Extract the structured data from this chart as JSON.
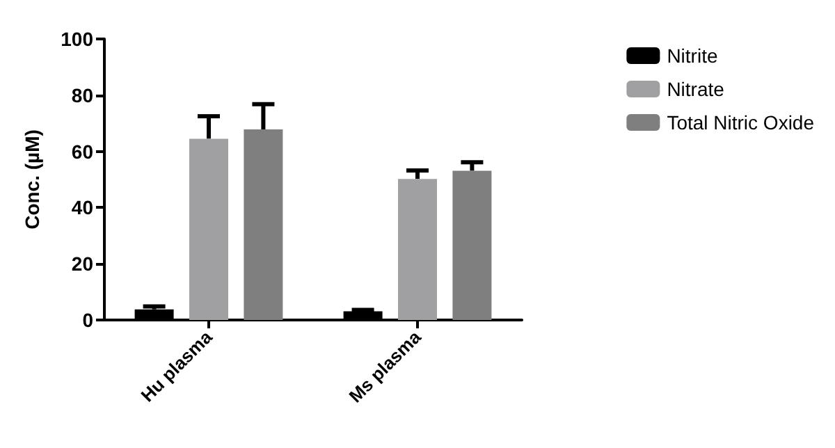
{
  "chart_data": {
    "type": "bar",
    "ylabel": "Conc. (µM)",
    "categories": [
      "Hu plasma",
      "Ms plasma"
    ],
    "series": [
      {
        "name": "Nitrite",
        "color": "#000000",
        "values": [
          3.8,
          3.1
        ],
        "errors": [
          1,
          0.5
        ]
      },
      {
        "name": "Nitrate",
        "color": "#a0a0a3",
        "values": [
          64.5,
          50.2
        ],
        "errors": [
          8,
          3
        ]
      },
      {
        "name": "Total Nitric Oxide",
        "color": "#7f7f7f",
        "values": [
          67.8,
          53.1
        ],
        "errors": [
          9,
          3
        ]
      }
    ],
    "ylim": [
      0,
      100
    ],
    "yticks": [
      0,
      20,
      40,
      60,
      80,
      100
    ],
    "grid": false,
    "legend": "right"
  }
}
